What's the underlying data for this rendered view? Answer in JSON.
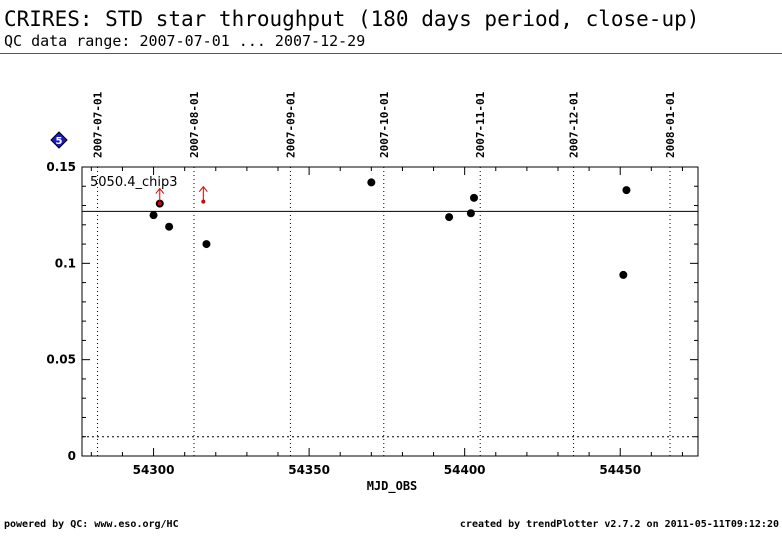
{
  "header": {
    "title": "CRIRES: STD star throughput (180 days period, close-up)",
    "subtitle": "QC data range: 2007-07-01 ... 2007-12-29"
  },
  "footer": {
    "left": "powered by QC: www.eso.org/HC",
    "right": "created by trendPlotter v2.7.2 on 2011-05-11T09:12:20"
  },
  "badge": {
    "label": "5",
    "color": "#1a1acc"
  },
  "chart_data": {
    "type": "scatter",
    "title": "",
    "xlabel": "MJD_OBS",
    "ylabel": "",
    "xlim": [
      54277,
      54475
    ],
    "ylim": [
      0,
      0.15
    ],
    "x_ticks": [
      54300,
      54350,
      54400,
      54450
    ],
    "x_tick_labels": [
      "54300",
      "54350",
      "54400",
      "54450"
    ],
    "y_ticks": [
      0,
      0.05,
      0.1,
      0.15
    ],
    "y_tick_labels": [
      "0",
      "0.05",
      "0.1",
      "0.15"
    ],
    "date_markers": [
      {
        "x": 54282,
        "label": "2007-07-01"
      },
      {
        "x": 54313,
        "label": "2007-08-01"
      },
      {
        "x": 54344,
        "label": "2007-09-01"
      },
      {
        "x": 54374,
        "label": "2007-10-01"
      },
      {
        "x": 54405,
        "label": "2007-11-01"
      },
      {
        "x": 54435,
        "label": "2007-12-01"
      },
      {
        "x": 54466,
        "label": "2008-01-01"
      }
    ],
    "series": [
      {
        "label": "5050.4_chip3",
        "color": "#000000",
        "points": [
          {
            "x": 54300.0,
            "y": 0.125
          },
          {
            "x": 54302.0,
            "y": 0.131
          },
          {
            "x": 54305.0,
            "y": 0.119
          },
          {
            "x": 54317.0,
            "y": 0.11
          },
          {
            "x": 54370.0,
            "y": 0.142
          },
          {
            "x": 54395.0,
            "y": 0.124
          },
          {
            "x": 54402.0,
            "y": 0.126
          },
          {
            "x": 54403.0,
            "y": 0.134
          },
          {
            "x": 54451.0,
            "y": 0.094
          },
          {
            "x": 54452.0,
            "y": 0.138
          }
        ]
      }
    ],
    "out_of_range_markers": {
      "color": "#dd0000",
      "direction": "up",
      "points": [
        {
          "x": 54302.0,
          "y": 0.131
        },
        {
          "x": 54316.0,
          "y": 0.132
        }
      ]
    },
    "reference_lines": [
      {
        "y": 0.127,
        "style": "solid"
      },
      {
        "y": 0.01,
        "style": "dotted"
      }
    ],
    "grid": false
  }
}
